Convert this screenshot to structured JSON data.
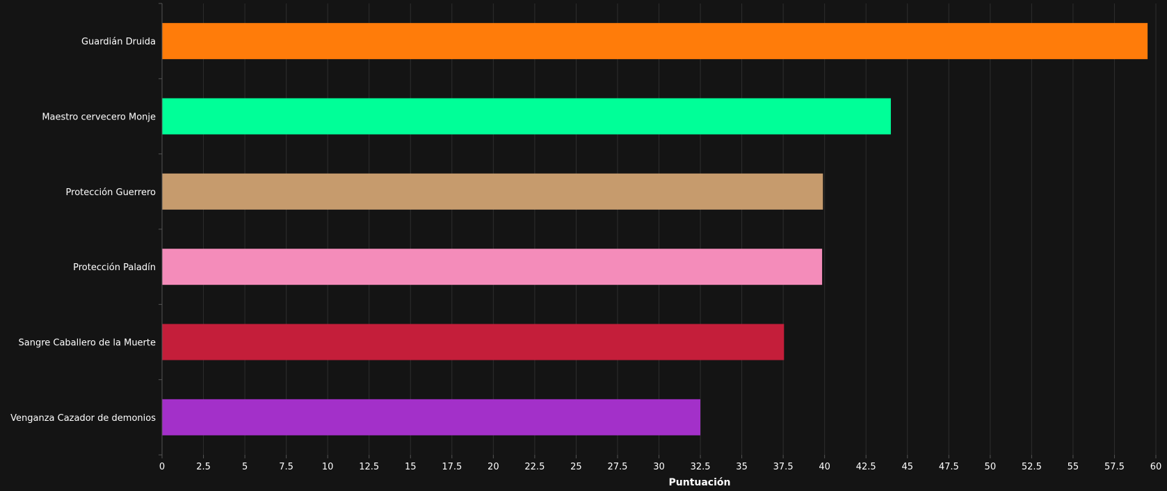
{
  "chart_data": {
    "type": "bar",
    "orientation": "horizontal",
    "categories": [
      "Guardián Druida",
      "Maestro cervecero Monje",
      "Protección Guerrero",
      "Protección Paladín",
      "Sangre Caballero de la Muerte",
      "Venganza Cazador de demonios"
    ],
    "values": [
      59.5,
      44.0,
      39.9,
      39.85,
      37.55,
      32.5
    ],
    "colors": [
      "#FF7C0A",
      "#00FF98",
      "#C69B6D",
      "#F48CBA",
      "#C41E3A",
      "#A330C9"
    ],
    "xlabel": "Puntuación",
    "xlim": [
      0,
      60
    ],
    "xticks": [
      "0",
      "2.5",
      "5",
      "7.5",
      "10",
      "12.5",
      "15",
      "17.5",
      "20",
      "22.5",
      "25",
      "27.5",
      "30",
      "32.5",
      "35",
      "37.5",
      "40",
      "42.5",
      "45",
      "47.5",
      "50",
      "52.5",
      "55",
      "57.5",
      "60"
    ],
    "grid": true,
    "legend": "none"
  },
  "style": {
    "background": "#141414",
    "grid_color": "#2e2e2e",
    "axis_color": "#555555",
    "text_color": "#ffffff"
  }
}
